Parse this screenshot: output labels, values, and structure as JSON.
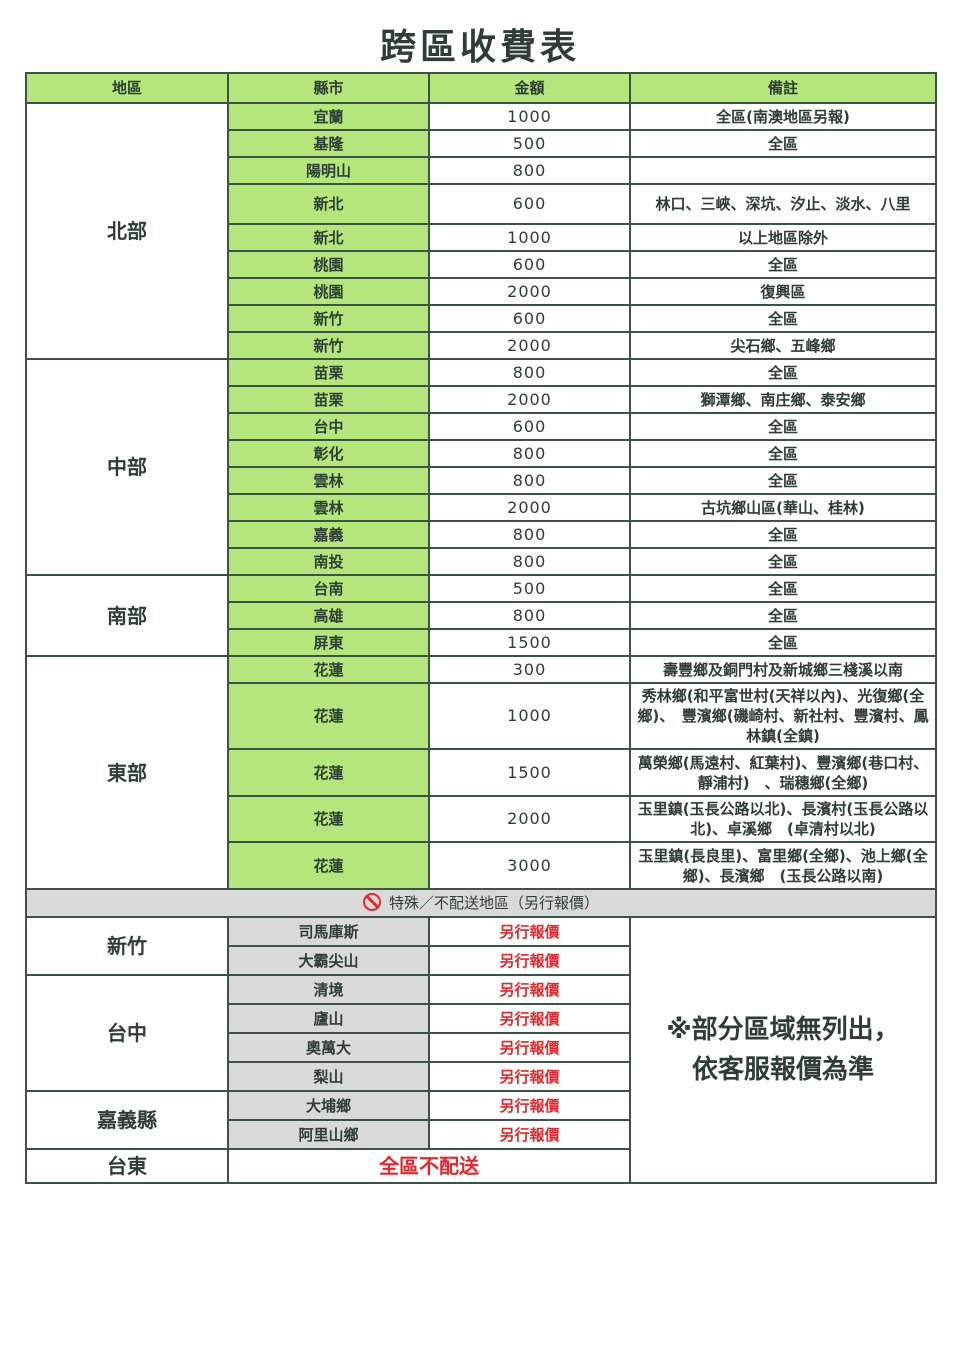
{
  "title": "跨區收費表",
  "headers": [
    "地區",
    "縣市",
    "金額",
    "備註"
  ],
  "colors": {
    "header_green": "#b5e67c",
    "special_gray": "#d9d9d9",
    "alert_red": "#e8262a"
  },
  "regions": [
    {
      "name": "北部",
      "rows": [
        {
          "city": "宜蘭",
          "amount": "1000",
          "note": "全區(南澳地區另報)"
        },
        {
          "city": "基隆",
          "amount": "500",
          "note": "全區"
        },
        {
          "city": "陽明山",
          "amount": "800",
          "note": ""
        },
        {
          "city": "新北",
          "amount": "600",
          "note": "林口、三峽、深坑、汐止、淡水、八里"
        },
        {
          "city": "新北",
          "amount": "1000",
          "note": "以上地區除外"
        },
        {
          "city": "桃園",
          "amount": "600",
          "note": "全區"
        },
        {
          "city": "桃園",
          "amount": "2000",
          "note": "復興區"
        },
        {
          "city": "新竹",
          "amount": "600",
          "note": "全區"
        },
        {
          "city": "新竹",
          "amount": "2000",
          "note": "尖石鄉、五峰鄉"
        }
      ]
    },
    {
      "name": "中部",
      "rows": [
        {
          "city": "苗栗",
          "amount": "800",
          "note": "全區"
        },
        {
          "city": "苗栗",
          "amount": "2000",
          "note": "獅潭鄉、南庄鄉、泰安鄉"
        },
        {
          "city": "台中",
          "amount": "600",
          "note": "全區"
        },
        {
          "city": "彰化",
          "amount": "800",
          "note": "全區"
        },
        {
          "city": "雲林",
          "amount": "800",
          "note": "全區"
        },
        {
          "city": "雲林",
          "amount": "2000",
          "note": "古坑鄉山區(華山、桂林)"
        },
        {
          "city": "嘉義",
          "amount": "800",
          "note": "全區"
        },
        {
          "city": "南投",
          "amount": "800",
          "note": "全區"
        }
      ]
    },
    {
      "name": "南部",
      "rows": [
        {
          "city": "台南",
          "amount": "500",
          "note": "全區"
        },
        {
          "city": "高雄",
          "amount": "800",
          "note": "全區"
        },
        {
          "city": "屏東",
          "amount": "1500",
          "note": "全區"
        }
      ]
    },
    {
      "name": "東部",
      "rows": [
        {
          "city": "花蓮",
          "amount": "300",
          "note": "壽豐鄉及銅門村及新城鄉三棧溪以南"
        },
        {
          "city": "花蓮",
          "amount": "1000",
          "note": "秀林鄉(和平富世村(天祥以內)、光復鄉(全鄉)、　豐濱鄉(磯崎村、新社村、豐濱村、鳳林鎮(全鎮)"
        },
        {
          "city": "花蓮",
          "amount": "1500",
          "note": "萬榮鄉(馬遠村、紅葉村)、豐濱鄉(巷口村、靜浦村)　、瑞穗鄉(全鄉)"
        },
        {
          "city": "花蓮",
          "amount": "2000",
          "note": "玉里鎮(玉長公路以北)、長濱村(玉長公路以北)、卓溪鄉　(卓清村以北)"
        },
        {
          "city": "花蓮",
          "amount": "3000",
          "note": "玉里鎮(長良里)、富里鄉(全鄉)、池上鄉(全鄉)、長濱鄉　(玉長公路以南)"
        }
      ]
    }
  ],
  "special": {
    "icon": "no-entry-icon",
    "heading": "特殊／不配送地區（另行報價）",
    "remark": "※部分區域無列出，依客服報價為準",
    "remark_line1": "※部分區域無列出，",
    "remark_line2": "依客服報價為準",
    "groups": [
      {
        "name": "新竹",
        "rows": [
          {
            "city": "司馬庫斯",
            "status": "另行報價"
          },
          {
            "city": "大霸尖山",
            "status": "另行報價"
          }
        ]
      },
      {
        "name": "台中",
        "rows": [
          {
            "city": "清境",
            "status": "另行報價"
          },
          {
            "city": "廬山",
            "status": "另行報價"
          },
          {
            "city": "奧萬大",
            "status": "另行報價"
          },
          {
            "city": "梨山",
            "status": "另行報價"
          }
        ]
      },
      {
        "name": "嘉義縣",
        "rows": [
          {
            "city": "大埔鄉",
            "status": "另行報價"
          },
          {
            "city": "阿里山鄉",
            "status": "另行報價"
          }
        ]
      }
    ],
    "taitung": {
      "name": "台東",
      "status": "全區不配送"
    }
  }
}
